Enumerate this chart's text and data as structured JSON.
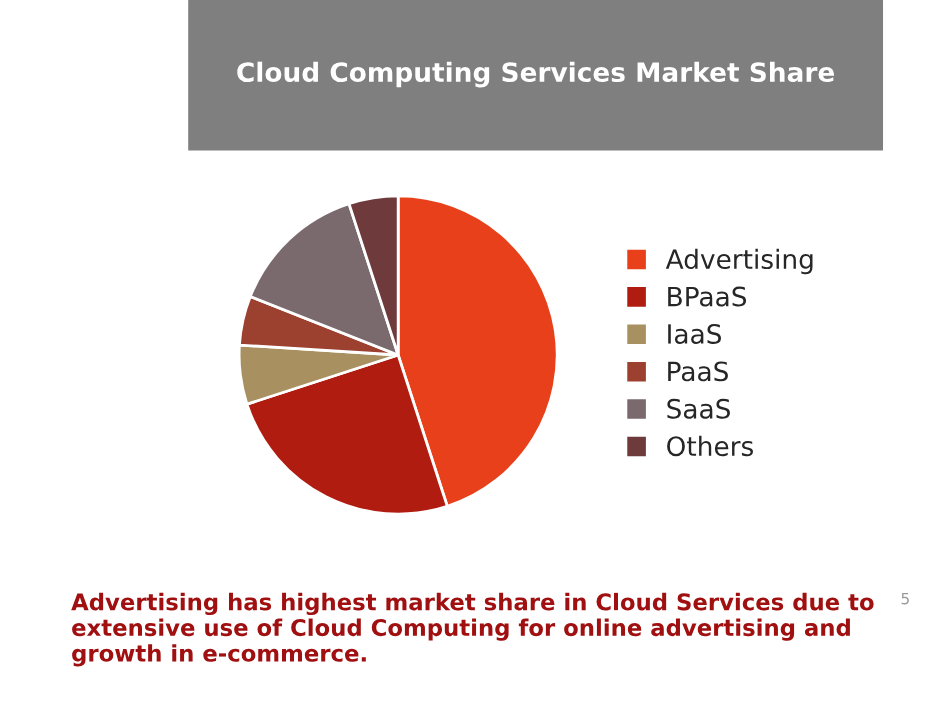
{
  "chart_data": {
    "type": "pie",
    "title": "Cloud Computing Services Market Share",
    "categories": [
      "Advertising",
      "BPaaS",
      "IaaS",
      "PaaS",
      "SaaS",
      "Others"
    ],
    "values": [
      45,
      25,
      6,
      5,
      14,
      5
    ],
    "colors": [
      "#e8401a",
      "#b01d10",
      "#a89060",
      "#9c4030",
      "#7a6a6e",
      "#6e3a3c"
    ],
    "legend": "right",
    "annotations": [
      "Advertising has highest market share in Cloud Services due to extensive use of Cloud Computing for online advertising and growth in e-commerce.",
      "5"
    ]
  }
}
